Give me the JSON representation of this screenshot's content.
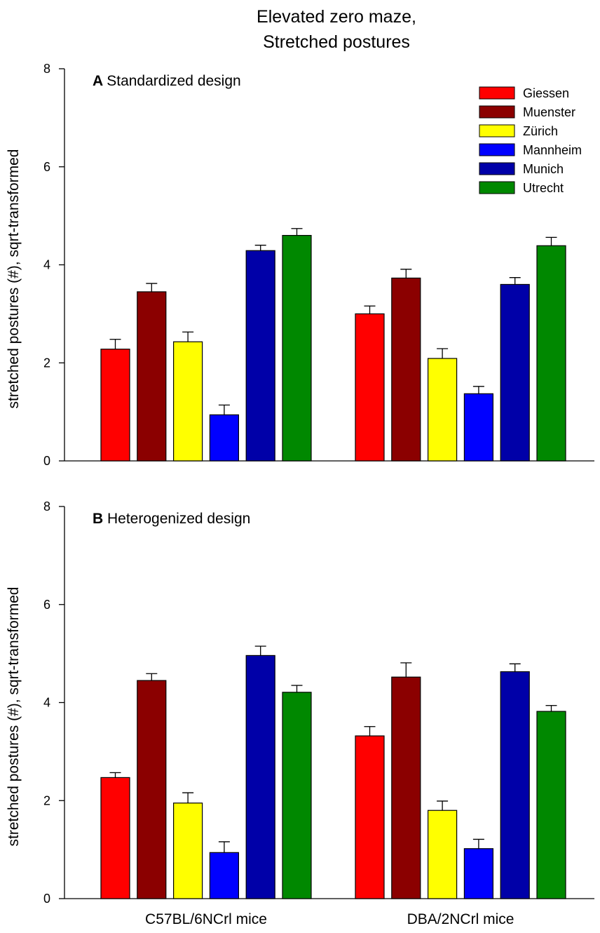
{
  "figure": {
    "title_line1": "Elevated zero maze,",
    "title_line2": "Stretched postures"
  },
  "chart_data": [
    {
      "type": "bar",
      "panel_letter": "A",
      "title": "Standardized design",
      "xlabel": "",
      "ylabel": "stretched postures (#), sqrt-transformed",
      "ylim": [
        0,
        8
      ],
      "yticks": [
        "0",
        "2",
        "4",
        "6",
        "8"
      ],
      "categories": [
        "C57BL/6NCrl mice",
        "DBA/2NCrl mice"
      ],
      "show_category_labels": false,
      "legend_position": "top-right",
      "grid": false,
      "series": [
        {
          "name": "Giessen",
          "color": "#ff0000",
          "values": [
            2.28,
            3.0
          ],
          "errors": [
            0.2,
            0.16
          ]
        },
        {
          "name": "Muenster",
          "color": "#8b0000",
          "values": [
            3.45,
            3.73
          ],
          "errors": [
            0.17,
            0.18
          ]
        },
        {
          "name": "Zürich",
          "color": "#ffff00",
          "values": [
            2.43,
            2.09
          ],
          "errors": [
            0.2,
            0.2
          ]
        },
        {
          "name": "Mannheim",
          "color": "#0000ff",
          "values": [
            0.94,
            1.37
          ],
          "errors": [
            0.2,
            0.15
          ]
        },
        {
          "name": "Munich",
          "color": "#0000a8",
          "values": [
            4.29,
            3.6
          ],
          "errors": [
            0.11,
            0.14
          ]
        },
        {
          "name": "Utrecht",
          "color": "#008800",
          "values": [
            4.6,
            4.39
          ],
          "errors": [
            0.14,
            0.17
          ]
        }
      ]
    },
    {
      "type": "bar",
      "panel_letter": "B",
      "title": "Heterogenized design",
      "xlabel": "",
      "ylabel": "stretched postures (#), sqrt-transformed",
      "ylim": [
        0,
        8
      ],
      "yticks": [
        "0",
        "2",
        "4",
        "6",
        "8"
      ],
      "categories": [
        "C57BL/6NCrl mice",
        "DBA/2NCrl mice"
      ],
      "show_category_labels": true,
      "grid": false,
      "series": [
        {
          "name": "Giessen",
          "color": "#ff0000",
          "values": [
            2.47,
            3.32
          ],
          "errors": [
            0.1,
            0.19
          ]
        },
        {
          "name": "Muenster",
          "color": "#8b0000",
          "values": [
            4.45,
            4.52
          ],
          "errors": [
            0.14,
            0.29
          ]
        },
        {
          "name": "Zürich",
          "color": "#ffff00",
          "values": [
            1.95,
            1.8
          ],
          "errors": [
            0.21,
            0.19
          ]
        },
        {
          "name": "Mannheim",
          "color": "#0000ff",
          "values": [
            0.94,
            1.02
          ],
          "errors": [
            0.22,
            0.19
          ]
        },
        {
          "name": "Munich",
          "color": "#0000a8",
          "values": [
            4.96,
            4.63
          ],
          "errors": [
            0.19,
            0.16
          ]
        },
        {
          "name": "Utrecht",
          "color": "#008800",
          "values": [
            4.21,
            3.82
          ],
          "errors": [
            0.14,
            0.12
          ]
        }
      ]
    }
  ]
}
